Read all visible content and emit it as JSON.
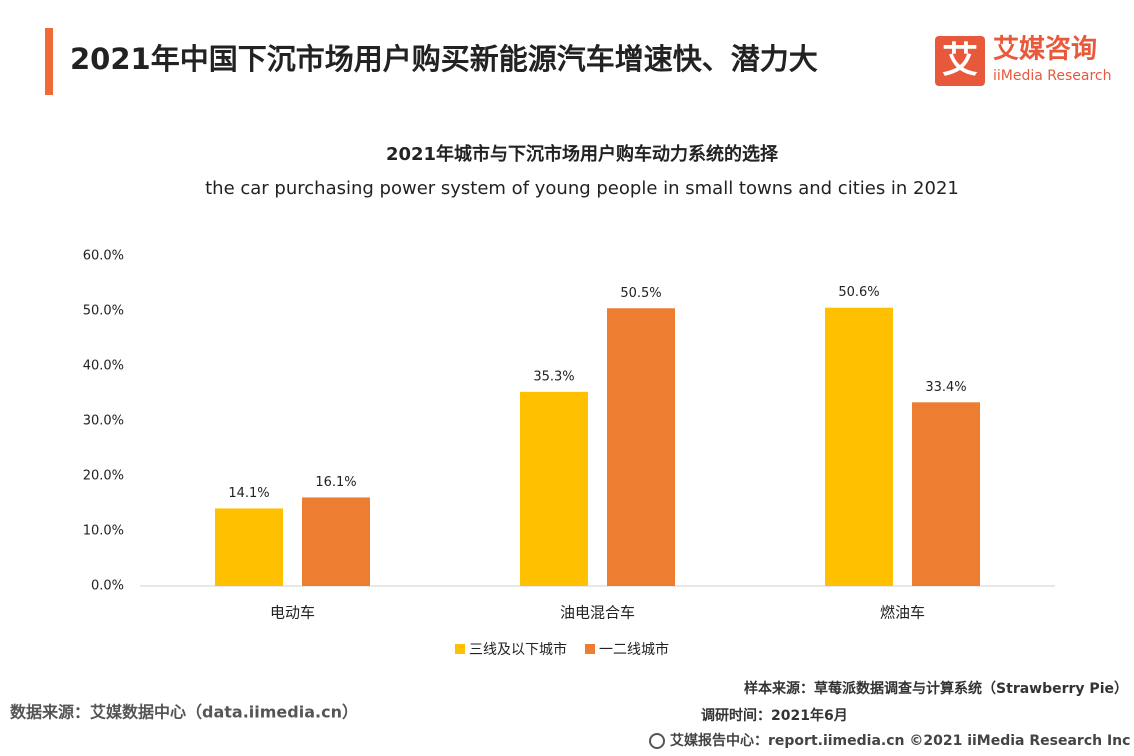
{
  "header": {
    "title": "2021年中国下沉市场用户购买新能源汽车增速快、潜力大"
  },
  "logo": {
    "mark": "艾",
    "name": "艾媒咨询",
    "english": "iiMedia Research"
  },
  "chart_data": {
    "type": "bar",
    "title": "2021年城市与下沉市场用户购车动力系统的选择",
    "subtitle": "the car purchasing power system of young people in small towns and cities in 2021",
    "categories": [
      "电动车",
      "油电混合车",
      "燃油车"
    ],
    "series": [
      {
        "name": "三线及以下城市",
        "color": "#FFC000",
        "values": [
          14.1,
          35.3,
          50.6
        ],
        "value_labels": [
          "14.1%",
          "35.3%",
          "50.6%"
        ]
      },
      {
        "name": "一二线城市",
        "color": "#ED7D31",
        "values": [
          16.1,
          50.5,
          33.4
        ],
        "value_labels": [
          "16.1%",
          "50.5%",
          "33.4%"
        ]
      }
    ],
    "ylim": [
      0,
      60
    ],
    "yticks": [
      {
        "value": 0,
        "label": "0.0%"
      },
      {
        "value": 10,
        "label": "10.0%"
      },
      {
        "value": 20,
        "label": "20.0%"
      },
      {
        "value": 30,
        "label": "30.0%"
      },
      {
        "value": 40,
        "label": "40.0%"
      },
      {
        "value": 50,
        "label": "50.0%"
      },
      {
        "value": 60,
        "label": "60.0%"
      }
    ],
    "grid": false,
    "legend": "bottom"
  },
  "footer": {
    "sample_source": "样本来源：草莓派数据调查与计算系统（Strawberry Pie）",
    "survey_time": "调研时间：2021年6月",
    "data_source": "数据来源：艾媒数据中心（data.iimedia.cn）",
    "copyright": "艾媒报告中心：report.iimedia.cn  ©2021  iiMedia Research  Inc"
  }
}
